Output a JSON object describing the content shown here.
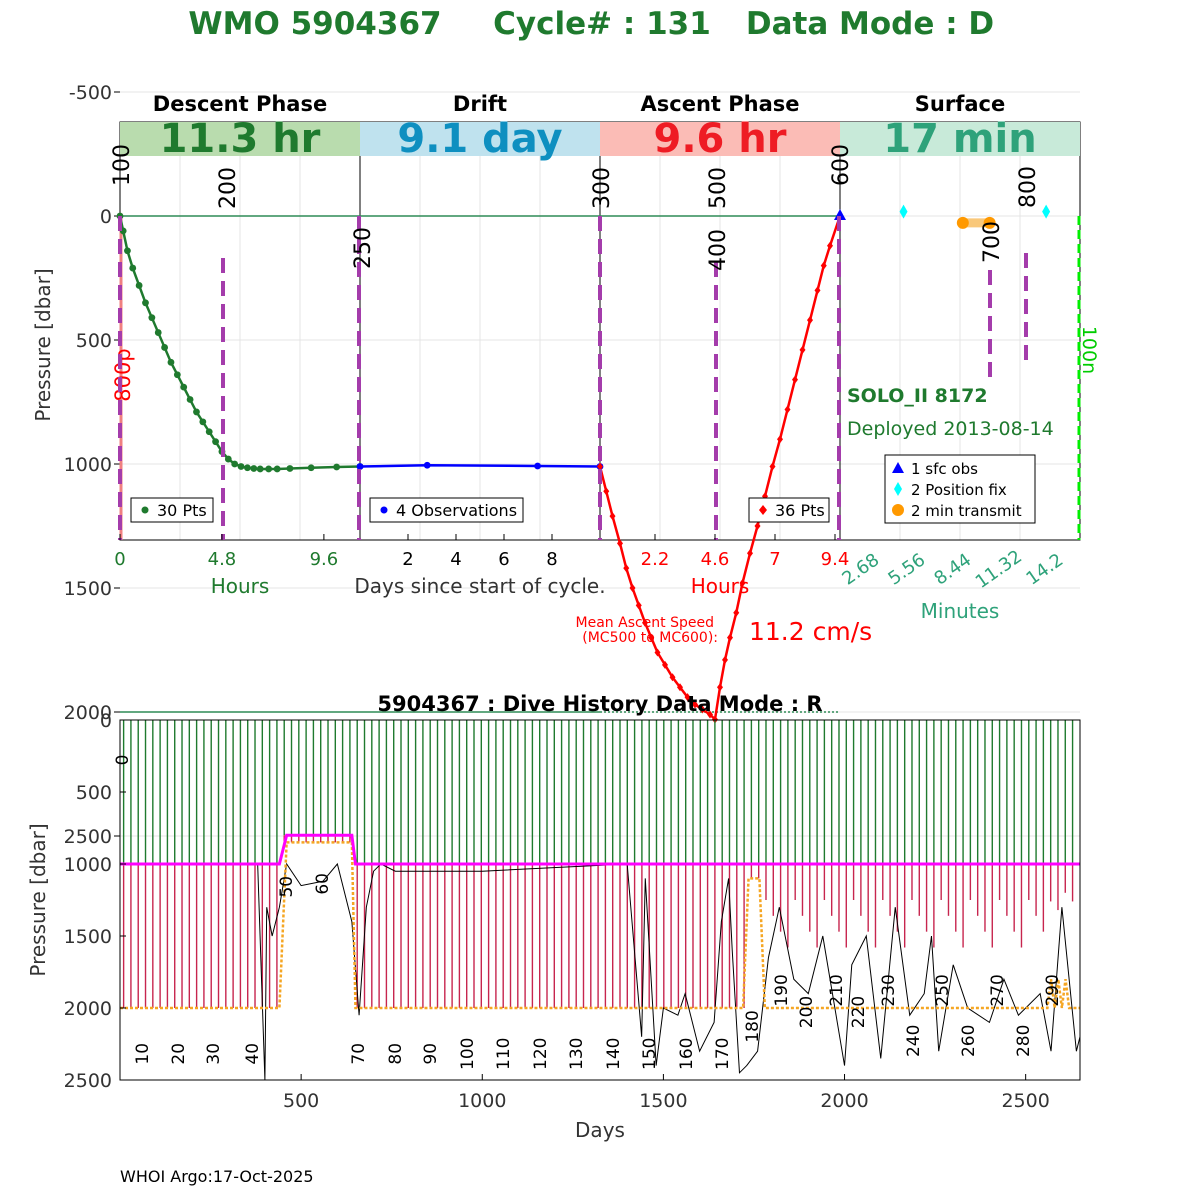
{
  "title": {
    "wmo": "WMO 5904367",
    "cycle": "Cycle# : 131",
    "mode": "Data Mode : D",
    "color": "#1f7a2e"
  },
  "top_panel": {
    "ylabel": "Pressure [dbar]",
    "y_ticks": [
      "-500",
      "0",
      "500",
      "1000",
      "1500",
      "2000",
      "2500"
    ],
    "phases": [
      {
        "name": "Descent Phase",
        "value": "11.3 hr",
        "bg": "#b9dcae",
        "fg": "#1f7a2e"
      },
      {
        "name": "Drift",
        "value": "9.1 day",
        "bg": "#bfe2ee",
        "fg": "#0e8fc0"
      },
      {
        "name": "Ascent Phase",
        "value": "9.6 hr",
        "bg": "#fbbcb6",
        "fg": "#ee1c24"
      },
      {
        "name": "Surface",
        "value": "17 min",
        "bg": "#c8ead9",
        "fg": "#2ea27a"
      }
    ],
    "descent_ticks": [
      "0",
      "4.8",
      "9.6"
    ],
    "descent_unit": "Hours",
    "drift_ticks": [
      "2",
      "4",
      "6",
      "8"
    ],
    "drift_unit": "Days since start of cycle.",
    "ascent_ticks": [
      "2.2",
      "4.6",
      "7",
      "9.4"
    ],
    "ascent_unit": "Hours",
    "surface_ticks": [
      "2.68",
      "5.56",
      "8.44",
      "11.32",
      "14.2"
    ],
    "surface_unit": "Minutes",
    "mc_labels": [
      "100",
      "200",
      "250",
      "300",
      "400",
      "500",
      "600",
      "700",
      "800"
    ],
    "label_800p": "800p",
    "label_100n": "100n",
    "legend_descent": "30 Pts",
    "legend_drift": "4 Observations",
    "legend_ascent": "36 Pts",
    "float_name": "SOLO_II 8172",
    "deployed": "Deployed 2013-08-14",
    "surface_legend": [
      "1 sfc obs",
      "2 Position fix",
      "2 min transmit"
    ],
    "ascent_speed_label1": "Mean Ascent Speed",
    "ascent_speed_label2": "(MC500 to MC600):",
    "ascent_speed_value": "11.2 cm/s"
  },
  "chart_data": [
    {
      "type": "line",
      "title": "WMO 5904367   Cycle# : 131   Data Mode : D",
      "ylabel": "Pressure [dbar]",
      "ylim": [
        2600,
        -700
      ],
      "grid": true,
      "series": [
        {
          "name": "30 Pts",
          "phase": "descent",
          "x_unit": "hours",
          "xlim": [
            0,
            11.3
          ],
          "x": [
            0,
            0.15,
            0.35,
            0.6,
            0.9,
            1.2,
            1.5,
            1.8,
            2.1,
            2.4,
            2.7,
            3.0,
            3.3,
            3.6,
            3.9,
            4.2,
            4.5,
            4.8,
            5.1,
            5.4,
            5.7,
            6.0,
            6.3,
            6.6,
            7.0,
            7.4,
            8.0,
            9.0,
            10.2,
            11.3
          ],
          "values": [
            0,
            60,
            140,
            210,
            280,
            350,
            410,
            470,
            530,
            590,
            640,
            690,
            740,
            790,
            830,
            870,
            910,
            950,
            980,
            1000,
            1010,
            1015,
            1018,
            1020,
            1020,
            1020,
            1018,
            1015,
            1012,
            1010
          ],
          "color": "#1f7a2e"
        },
        {
          "name": "4 Observations",
          "phase": "drift",
          "x_unit": "days",
          "xlim": [
            0,
            10
          ],
          "x": [
            0,
            2.8,
            7.4,
            10
          ],
          "values": [
            1010,
            1005,
            1008,
            1010
          ],
          "color": "#0000ff"
        },
        {
          "name": "36 Pts",
          "phase": "ascent",
          "x_unit": "hours",
          "xlim": [
            0,
            9.6
          ],
          "x": [
            0,
            0.25,
            0.5,
            0.8,
            1.05,
            1.3,
            1.55,
            1.8,
            2.05,
            2.3,
            2.6,
            2.9,
            3.2,
            3.5,
            3.8,
            4.1,
            4.4,
            4.6,
            4.8,
            5.0,
            5.2,
            5.45,
            5.7,
            6.0,
            6.3,
            6.6,
            6.9,
            7.2,
            7.5,
            7.8,
            8.1,
            8.4,
            8.7,
            8.95,
            9.2,
            9.6
          ],
          "values": [
            1010,
            1110,
            1210,
            1320,
            1420,
            1500,
            1570,
            1640,
            1700,
            1760,
            1810,
            1860,
            1900,
            1940,
            1970,
            1990,
            2010,
            2030,
            1900,
            1790,
            1700,
            1600,
            1480,
            1360,
            1250,
            1130,
            1010,
            900,
            780,
            660,
            540,
            420,
            300,
            200,
            120,
            0
          ],
          "color": "#ff0000"
        },
        {
          "name": "1 sfc obs",
          "phase": "surface",
          "x_unit": "minutes",
          "x": [
            0
          ],
          "values": [
            0
          ],
          "color": "#0000ff"
        },
        {
          "name": "2 Position fix",
          "phase": "surface",
          "x_unit": "minutes",
          "x": [
            4.5,
            14.6
          ],
          "values": [
            -50,
            -50
          ],
          "color": "#00ffff"
        },
        {
          "name": "2 min transmit",
          "phase": "surface",
          "x_unit": "minutes",
          "x": [
            8.7,
            10.6
          ],
          "values": [
            60,
            60
          ],
          "color": "#ff9900"
        }
      ]
    },
    {
      "type": "line",
      "title": "5904367 : Dive History      Data Mode : R",
      "xlabel": "Days",
      "ylabel": "Pressure [dbar]",
      "xlim": [
        0,
        2650
      ],
      "ylim": [
        2500,
        0
      ],
      "x_ticks": [
        500,
        1000,
        1500,
        2000,
        2500
      ],
      "y_ticks": [
        0,
        500,
        1000,
        1500,
        2000,
        2500
      ],
      "cycle_labels": [
        "0",
        "10",
        "20",
        "30",
        "40",
        "50",
        "60",
        "70",
        "80",
        "90",
        "100",
        "110",
        "120",
        "130",
        "140",
        "150",
        "160",
        "170",
        "180",
        "190",
        "200",
        "210",
        "220",
        "230",
        "240",
        "250",
        "260",
        "270",
        "280",
        "290"
      ],
      "series": [
        {
          "name": "park pressure",
          "color": "#ff00ff",
          "x": [
            0,
            440,
            460,
            640,
            650,
            2650
          ],
          "values": [
            1000,
            1000,
            800,
            800,
            1000,
            1000
          ]
        },
        {
          "name": "profile pressure",
          "color": "#f5a623",
          "x": [
            0,
            440,
            460,
            640,
            650,
            1720,
            1735,
            1765,
            1780,
            2560,
            2570,
            2580,
            2590,
            2600,
            2610,
            2620,
            2650
          ],
          "values": [
            2000,
            2000,
            850,
            850,
            2000,
            2000,
            1100,
            1100,
            2000,
            2000,
            1800,
            2000,
            1800,
            2000,
            1800,
            2000,
            2000
          ]
        }
      ]
    }
  ],
  "footer": "WHOI Argo:17-Oct-2025"
}
